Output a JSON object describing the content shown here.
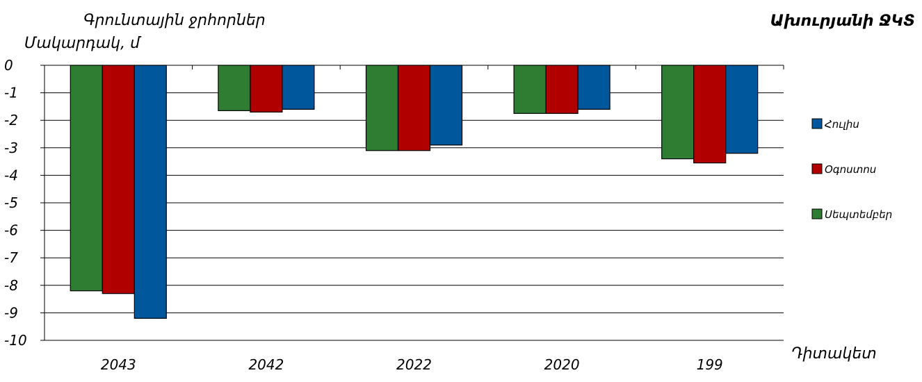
{
  "chart_data": {
    "type": "bar",
    "title": "Ախուրյանի ՋԿՏ",
    "subtitle": "Գրունտային ջրհորներ",
    "ylabel": "Մակարդակ, մ",
    "xlabel": "Դիտակետ",
    "categories": [
      "2043",
      "2042",
      "2022",
      "2020",
      "199"
    ],
    "ylim": [
      -10,
      0
    ],
    "yticks": [
      0,
      -1,
      -2,
      -3,
      -4,
      -5,
      -6,
      -7,
      -8,
      -9,
      -10
    ],
    "grid": true,
    "legend_position": "right",
    "legend_order": [
      "Հուլիս",
      "Օգոստոս",
      "Սեպտեմբեր"
    ],
    "series": [
      {
        "name": "Սեպտեմբեր",
        "color": "#2e7d32",
        "values": [
          -8.2,
          -1.65,
          -3.1,
          -1.75,
          -3.4
        ]
      },
      {
        "name": "Օգոստոս",
        "color": "#b00000",
        "values": [
          -8.3,
          -1.7,
          -3.1,
          -1.75,
          -3.55
        ]
      },
      {
        "name": "Հուլիս",
        "color": "#00579b",
        "values": [
          -9.2,
          -1.6,
          -2.9,
          -1.6,
          -3.2
        ]
      }
    ]
  }
}
